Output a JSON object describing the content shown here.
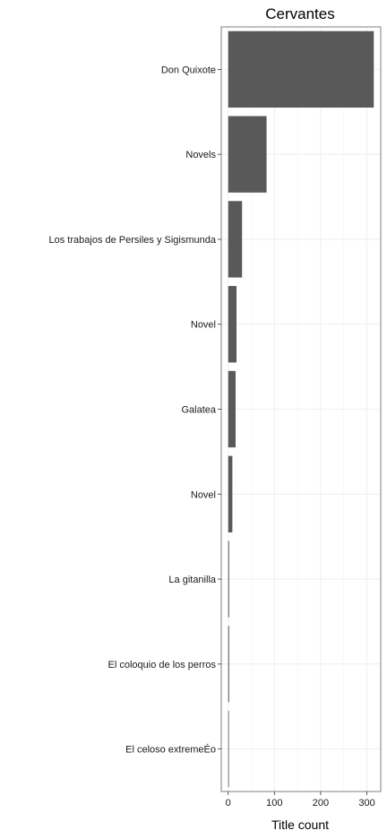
{
  "chart_data": {
    "type": "bar",
    "orientation": "horizontal",
    "title": "Cervantes",
    "xlabel": "Title count",
    "ylabel": "",
    "xlim": [
      -15,
      330
    ],
    "xticks": [
      0,
      100,
      200,
      300
    ],
    "grid": true,
    "categories": [
      "Don Quixote",
      "Novels",
      "Los trabajos de Persiles y Sigismunda",
      "Novel ",
      "Galatea",
      "Novel",
      "La gitanilla",
      "El coloquio de los perros",
      "El celoso extremeÉo"
    ],
    "values": [
      315,
      83,
      30,
      18,
      16,
      9,
      2,
      2,
      1
    ],
    "colors": {
      "bar": "#595959",
      "grid": "#ebebeb",
      "panel_border": "#7f7f7f"
    }
  }
}
